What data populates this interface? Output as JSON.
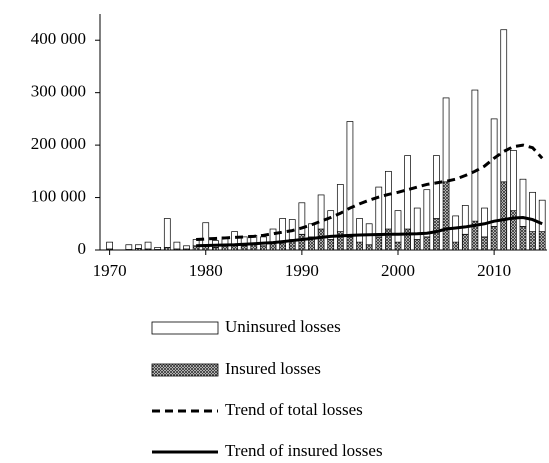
{
  "chart_data": {
    "type": "bar",
    "stacked": true,
    "x": [
      1970,
      1971,
      1972,
      1973,
      1974,
      1975,
      1976,
      1977,
      1978,
      1979,
      1980,
      1981,
      1982,
      1983,
      1984,
      1985,
      1986,
      1987,
      1988,
      1989,
      1990,
      1991,
      1992,
      1993,
      1994,
      1995,
      1996,
      1997,
      1998,
      1999,
      2000,
      2001,
      2002,
      2003,
      2004,
      2005,
      2006,
      2007,
      2008,
      2009,
      2010,
      2011,
      2012,
      2013,
      2014,
      2015
    ],
    "series": [
      {
        "name": "Uninsured losses",
        "type": "bar",
        "color": "#ffffff",
        "stack_order": 2,
        "values": [
          13000,
          0,
          9000,
          7000,
          13000,
          4000,
          55000,
          13000,
          6000,
          12000,
          44000,
          13000,
          17000,
          25000,
          17000,
          18000,
          17000,
          25000,
          48000,
          38000,
          60000,
          25000,
          65000,
          55000,
          90000,
          220000,
          45000,
          40000,
          95000,
          110000,
          60000,
          140000,
          60000,
          90000,
          120000,
          160000,
          50000,
          55000,
          250000,
          55000,
          205000,
          290000,
          115000,
          90000,
          75000,
          60000
        ]
      },
      {
        "name": "Insured losses",
        "type": "bar",
        "color": "#555555",
        "pattern": "crosshatch",
        "stack_order": 1,
        "values": [
          2000,
          0,
          1000,
          3000,
          2000,
          1000,
          5000,
          2000,
          2000,
          8000,
          8000,
          5000,
          8000,
          10000,
          8000,
          10000,
          8000,
          15000,
          12000,
          20000,
          30000,
          25000,
          40000,
          20000,
          35000,
          25000,
          15000,
          10000,
          25000,
          40000,
          15000,
          40000,
          20000,
          25000,
          60000,
          130000,
          15000,
          30000,
          55000,
          25000,
          45000,
          130000,
          75000,
          45000,
          35000,
          35000
        ]
      },
      {
        "name": "Trend of total losses",
        "type": "line",
        "color": "#000000",
        "line_style": "dashed",
        "values": [
          null,
          null,
          null,
          null,
          null,
          null,
          null,
          null,
          null,
          20000,
          21000,
          22000,
          23000,
          24000,
          25000,
          26000,
          28000,
          31000,
          34000,
          37000,
          42000,
          48000,
          55000,
          62000,
          70000,
          80000,
          88000,
          95000,
          101000,
          106000,
          110000,
          115000,
          120000,
          125000,
          128000,
          131000,
          135000,
          142000,
          150000,
          160000,
          175000,
          188000,
          197000,
          200000,
          195000,
          175000
        ]
      },
      {
        "name": "Trend of insured losses",
        "type": "line",
        "color": "#000000",
        "line_style": "solid",
        "values": [
          null,
          null,
          null,
          null,
          null,
          null,
          null,
          null,
          null,
          8000,
          8500,
          9000,
          9500,
          10000,
          11000,
          12000,
          13000,
          14000,
          16000,
          18000,
          20000,
          22000,
          24000,
          26000,
          27000,
          28000,
          28500,
          29000,
          29500,
          30000,
          30000,
          30500,
          31000,
          32000,
          35000,
          40000,
          42000,
          44000,
          47000,
          50000,
          55000,
          58000,
          61000,
          62000,
          58000,
          50000
        ]
      }
    ],
    "xlim": [
      1969,
      2015.5
    ],
    "xticks": [
      1970,
      1980,
      1990,
      2000,
      2010
    ],
    "ylim": [
      0,
      450000
    ],
    "yticks": [
      0,
      {
        "value": 100000,
        "label": "100 000"
      },
      {
        "value": 200000,
        "label": "200 000"
      },
      {
        "value": 300000,
        "label": "300 000"
      },
      {
        "value": 400000,
        "label": "400 000"
      }
    ],
    "legend": "bottom"
  }
}
